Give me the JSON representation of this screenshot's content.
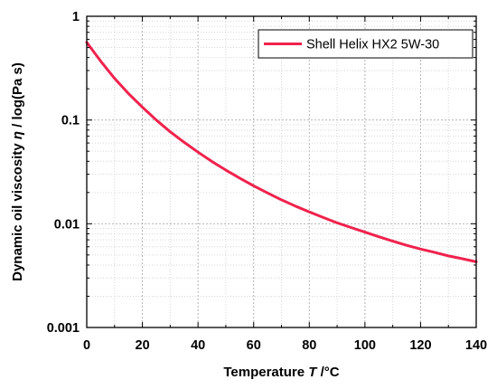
{
  "chart_data": {
    "type": "line",
    "x_scale": "linear",
    "y_scale": "log",
    "xlabel_parts": [
      "Temperature ",
      "T",
      " /°C"
    ],
    "ylabel_parts": [
      "Dynamic oil viscosity ",
      "η",
      " / log(Pa s)"
    ],
    "xlim": [
      0,
      140
    ],
    "ylim": [
      0.001,
      1
    ],
    "x_ticks": [
      0,
      20,
      40,
      60,
      80,
      100,
      120,
      140
    ],
    "x_tick_labels": [
      "0",
      "20",
      "40",
      "60",
      "80",
      "100",
      "120",
      "140"
    ],
    "y_ticks": [
      0.001,
      0.01,
      0.1,
      1
    ],
    "y_tick_labels": [
      "0.001",
      "0.01",
      "0.1",
      "1"
    ],
    "grid": true,
    "legend_position": "top-right",
    "series": [
      {
        "name": "Shell Helix HX2 5W-30",
        "color": "#f0224d",
        "x": [
          0,
          5,
          10,
          15,
          20,
          25,
          30,
          35,
          40,
          45,
          50,
          55,
          60,
          65,
          70,
          75,
          80,
          85,
          90,
          95,
          100,
          105,
          110,
          115,
          120,
          125,
          130,
          135,
          140
        ],
        "y": [
          0.56,
          0.37,
          0.252,
          0.18,
          0.133,
          0.1,
          0.077,
          0.061,
          0.049,
          0.0398,
          0.0329,
          0.0275,
          0.0232,
          0.0198,
          0.017,
          0.0148,
          0.013,
          0.0115,
          0.0102,
          0.0092,
          0.0083,
          0.0075,
          0.0068,
          0.0062,
          0.0057,
          0.0053,
          0.0049,
          0.0046,
          0.0043
        ]
      }
    ]
  }
}
